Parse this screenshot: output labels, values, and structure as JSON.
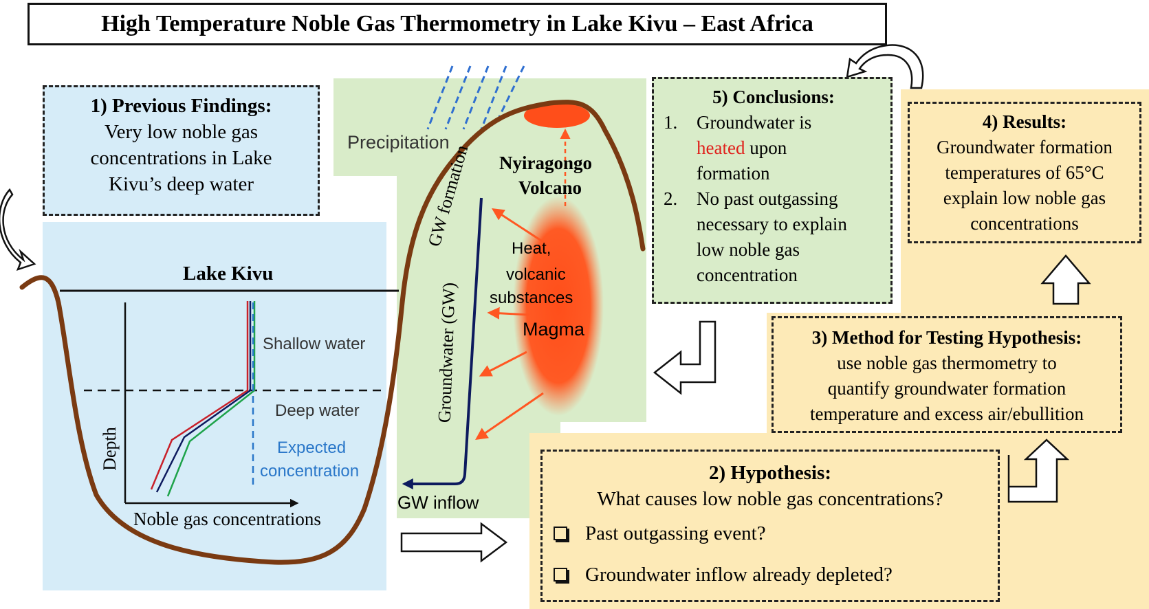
{
  "title": "High Temperature Noble Gas Thermometry in Lake Kivu – East Africa",
  "colors": {
    "lake_bg": "#d6ecf8",
    "volcano_bg": "#d9ecc9",
    "results_bg": "#fdeab7",
    "terrain": "#7a3a12",
    "magma": "#ff5722",
    "groundwater_line": "#0d1a5e",
    "expected_line": "#2a77c9"
  },
  "box1": {
    "heading": "1) Previous Findings:",
    "lines": [
      "Very low noble gas",
      "concentrations in Lake",
      "Kivu’s deep water"
    ]
  },
  "box2": {
    "heading": "2) Hypothesis:",
    "question": "What causes low noble gas concentrations?",
    "options": [
      "Past outgassing event?",
      "Groundwater inflow already depleted?"
    ]
  },
  "box3": {
    "heading": "3) Method for Testing Hypothesis:",
    "lines": [
      "use noble gas thermometry to",
      "quantify groundwater formation",
      "temperature and excess air/ebullition"
    ]
  },
  "box4": {
    "heading": "4) Results:",
    "lines": [
      "Groundwater formation",
      "temperatures of 65°C",
      "explain low noble gas",
      "concentrations"
    ]
  },
  "box5": {
    "heading": "5) Conclusions:",
    "item1_num": "1.",
    "item1_a": "Groundwater is",
    "item1_red": "heated",
    "item1_b": " upon",
    "item1_c": "formation",
    "item2_num": "2.",
    "item2_lines": [
      "No past outgassing",
      "necessary to explain",
      "low noble gas",
      "concentration"
    ]
  },
  "lake": {
    "name": "Lake Kivu",
    "shallow": "Shallow water",
    "deep": "Deep water",
    "expected_1": "Expected",
    "expected_2": "concentration",
    "depth_axis": "Depth",
    "conc_axis": "Noble gas concentrations"
  },
  "volcano": {
    "precip": "Precipitation",
    "gw_formation": "GW formation",
    "groundwater": "Groundwater (GW)",
    "name_1": "Nyiragongo",
    "name_2": "Volcano",
    "heat_1": "Heat,",
    "heat_2": "volcanic",
    "heat_3": "substances",
    "magma": "Magma",
    "gw_inflow": "GW inflow"
  }
}
